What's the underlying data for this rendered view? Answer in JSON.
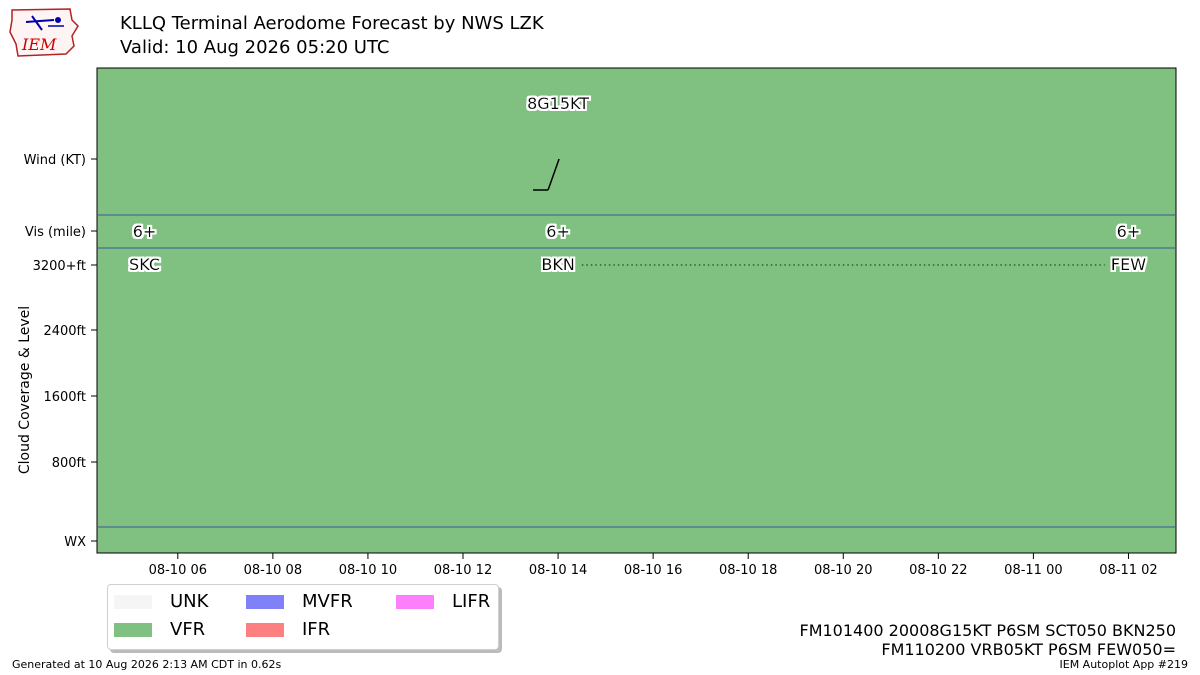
{
  "header": {
    "logo_text": "IEM",
    "title": "KLLQ Terminal Aerodome Forecast by NWS LZK",
    "subtitle": "Valid: 10 Aug 2026 05:20 UTC"
  },
  "chart_data": {
    "type": "timeline",
    "background_category": "VFR",
    "x_tick_labels": [
      "08-10 06",
      "08-10 08",
      "08-10 10",
      "08-10 12",
      "08-10 14",
      "08-10 16",
      "08-10 18",
      "08-10 20",
      "08-10 22",
      "08-11 00",
      "08-11 02"
    ],
    "x_range_hours": [
      -1.7,
      21.0
    ],
    "rows": [
      "Wind (KT)",
      "Vis (mile)",
      "3200+ft",
      "2400ft",
      "1600ft",
      "800ft",
      "WX"
    ],
    "ylabel": "Cloud Coverage & Level",
    "wind": [
      {
        "hour": 8,
        "label": "8G15KT",
        "direction_deg": 200
      }
    ],
    "visibility": [
      {
        "hour": -0.7,
        "label": "6+"
      },
      {
        "hour": 8,
        "label": "6+"
      },
      {
        "hour": 20,
        "label": "6+"
      }
    ],
    "clouds": [
      {
        "hour": -0.7,
        "label": "SKC",
        "level": "3200+ft"
      },
      {
        "hour": 8,
        "label": "BKN",
        "level": "3200+ft"
      },
      {
        "hour": 20,
        "label": "FEW",
        "level": "3200+ft"
      }
    ],
    "cloud_dotted_from_hour": 8.5,
    "cloud_dotted_to_hour": 19.5,
    "grid": false
  },
  "legend": [
    {
      "label": "UNK",
      "color": "#f5f5f5"
    },
    {
      "label": "MVFR",
      "color": "#8080f8"
    },
    {
      "label": "LIFR",
      "color": "#fc80fc"
    },
    {
      "label": "VFR",
      "color": "#80c080"
    },
    {
      "label": "IFR",
      "color": "#fc8080"
    }
  ],
  "colors": {
    "vfr": "#80c080",
    "separator": "#3b5998",
    "dotted": "#1f6b1f"
  },
  "taf": {
    "line1": "FM101400 20008G15KT P6SM SCT050 BKN250",
    "line2": "FM110200 VRB05KT P6SM FEW050="
  },
  "footer": {
    "generated": "Generated at 10 Aug 2026 2:13 AM CDT in 0.62s",
    "app": "IEM Autoplot App #219"
  }
}
